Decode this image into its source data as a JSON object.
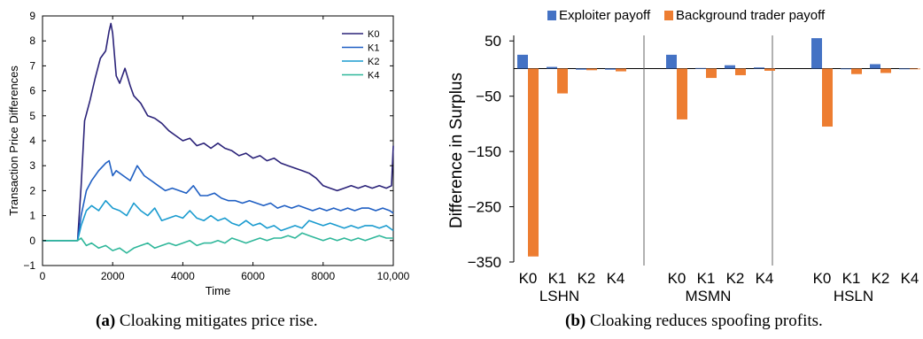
{
  "chart_data": [
    {
      "type": "line",
      "xlabel": "Time",
      "ylabel": "Transaction Price Differences",
      "xlim": [
        0,
        10000
      ],
      "ylim": [
        -1,
        9
      ],
      "xticks": [
        "0",
        "2000",
        "4000",
        "6000",
        "8000",
        "10,000"
      ],
      "yticks": [
        "−1",
        "0",
        "1",
        "2",
        "3",
        "4",
        "5",
        "6",
        "7",
        "8",
        "9"
      ],
      "legend_position": "top-right",
      "series": [
        {
          "name": "K0",
          "color": "#2b2379",
          "x": [
            0,
            1000,
            1100,
            1200,
            1350,
            1500,
            1650,
            1800,
            1900,
            1950,
            2000,
            2100,
            2200,
            2350,
            2500,
            2600,
            2800,
            3000,
            3200,
            3400,
            3600,
            3800,
            4000,
            4200,
            4400,
            4600,
            4800,
            5000,
            5200,
            5400,
            5600,
            5800,
            6000,
            6200,
            6400,
            6600,
            6800,
            7000,
            7200,
            7400,
            7600,
            7800,
            8000,
            8200,
            8400,
            8600,
            8800,
            9000,
            9200,
            9400,
            9600,
            9800,
            9950,
            10000
          ],
          "y": [
            0,
            0,
            2.2,
            4.8,
            5.6,
            6.5,
            7.3,
            7.6,
            8.4,
            8.7,
            8.3,
            6.6,
            6.3,
            6.9,
            6.2,
            5.8,
            5.5,
            5.0,
            4.9,
            4.7,
            4.4,
            4.2,
            4.0,
            4.1,
            3.8,
            3.9,
            3.7,
            3.9,
            3.7,
            3.6,
            3.4,
            3.5,
            3.3,
            3.4,
            3.2,
            3.3,
            3.1,
            3.0,
            2.9,
            2.8,
            2.7,
            2.5,
            2.2,
            2.1,
            2.0,
            2.1,
            2.2,
            2.1,
            2.2,
            2.1,
            2.2,
            2.1,
            2.2,
            3.8
          ]
        },
        {
          "name": "K1",
          "color": "#1f5fc3",
          "x": [
            0,
            1000,
            1100,
            1250,
            1400,
            1600,
            1800,
            1900,
            2000,
            2100,
            2300,
            2500,
            2700,
            2900,
            3100,
            3300,
            3500,
            3700,
            3900,
            4100,
            4300,
            4500,
            4700,
            4900,
            5100,
            5300,
            5500,
            5700,
            5900,
            6100,
            6300,
            6500,
            6700,
            6900,
            7100,
            7300,
            7500,
            7700,
            7900,
            8100,
            8300,
            8500,
            8700,
            8900,
            9100,
            9300,
            9500,
            9700,
            9900,
            10000
          ],
          "y": [
            0,
            0,
            1.0,
            2.0,
            2.4,
            2.8,
            3.1,
            3.2,
            2.6,
            2.8,
            2.6,
            2.4,
            3.0,
            2.6,
            2.4,
            2.2,
            2.0,
            2.1,
            2.0,
            1.9,
            2.2,
            1.8,
            1.8,
            1.9,
            1.7,
            1.6,
            1.6,
            1.5,
            1.6,
            1.5,
            1.4,
            1.5,
            1.3,
            1.4,
            1.3,
            1.4,
            1.3,
            1.2,
            1.3,
            1.2,
            1.3,
            1.2,
            1.3,
            1.2,
            1.3,
            1.3,
            1.2,
            1.3,
            1.2,
            1.1
          ]
        },
        {
          "name": "K2",
          "color": "#1a9bcf",
          "x": [
            0,
            1000,
            1100,
            1250,
            1400,
            1600,
            1800,
            2000,
            2200,
            2400,
            2600,
            2800,
            3000,
            3200,
            3400,
            3600,
            3800,
            4000,
            4200,
            4400,
            4600,
            4800,
            5000,
            5200,
            5400,
            5600,
            5800,
            6000,
            6200,
            6400,
            6600,
            6800,
            7000,
            7200,
            7400,
            7600,
            7800,
            8000,
            8200,
            8400,
            8600,
            8800,
            9000,
            9200,
            9400,
            9600,
            9800,
            10000
          ],
          "y": [
            0,
            0,
            0.6,
            1.2,
            1.4,
            1.2,
            1.6,
            1.3,
            1.2,
            1.0,
            1.5,
            1.2,
            1.0,
            1.3,
            0.8,
            0.9,
            1.0,
            0.9,
            1.2,
            0.9,
            0.8,
            1.0,
            0.8,
            0.9,
            0.7,
            0.6,
            0.8,
            0.6,
            0.7,
            0.5,
            0.6,
            0.4,
            0.5,
            0.6,
            0.5,
            0.8,
            0.7,
            0.6,
            0.7,
            0.6,
            0.5,
            0.6,
            0.5,
            0.6,
            0.6,
            0.5,
            0.6,
            0.4
          ]
        },
        {
          "name": "K4",
          "color": "#2fb79a",
          "x": [
            0,
            1000,
            1100,
            1250,
            1400,
            1600,
            1800,
            2000,
            2200,
            2400,
            2600,
            2800,
            3000,
            3200,
            3400,
            3600,
            3800,
            4000,
            4200,
            4400,
            4600,
            4800,
            5000,
            5200,
            5400,
            5600,
            5800,
            6000,
            6200,
            6400,
            6600,
            6800,
            7000,
            7200,
            7400,
            7600,
            7800,
            8000,
            8200,
            8400,
            8600,
            8800,
            9000,
            9200,
            9400,
            9600,
            9800,
            10000
          ],
          "y": [
            0,
            0,
            0.1,
            -0.2,
            -0.1,
            -0.3,
            -0.2,
            -0.4,
            -0.3,
            -0.5,
            -0.3,
            -0.2,
            -0.1,
            -0.3,
            -0.2,
            -0.1,
            -0.2,
            -0.1,
            0.0,
            -0.2,
            -0.1,
            -0.1,
            0.0,
            -0.1,
            0.1,
            0.0,
            -0.1,
            0.0,
            0.1,
            0.0,
            0.1,
            0.1,
            0.2,
            0.1,
            0.3,
            0.2,
            0.1,
            0.0,
            0.1,
            0.0,
            0.1,
            0.0,
            0.1,
            0.0,
            0.1,
            0.2,
            0.1,
            0.1
          ]
        }
      ]
    },
    {
      "type": "bar",
      "ylabel": "Difference in Surplus",
      "ylim": [
        -350,
        60
      ],
      "yticks": [
        "50",
        "−50",
        "−150",
        "−250",
        "−350"
      ],
      "legend_position": "top",
      "groups": [
        {
          "name": "LSHN",
          "categories": [
            "K0",
            "K1",
            "K2",
            "K4"
          ],
          "exploiter": [
            25,
            3,
            -2,
            -2
          ],
          "background": [
            -340,
            -45,
            -3,
            -5
          ]
        },
        {
          "name": "MSMN",
          "categories": [
            "K0",
            "K1",
            "K2",
            "K4"
          ],
          "exploiter": [
            25,
            1,
            6,
            2
          ],
          "background": [
            -92,
            -17,
            -12,
            -4
          ]
        },
        {
          "name": "HSLN",
          "categories": [
            "K0",
            "K1",
            "K2",
            "K4"
          ],
          "exploiter": [
            55,
            0,
            8,
            0
          ],
          "background": [
            -105,
            -10,
            -8,
            0
          ]
        }
      ],
      "series": [
        {
          "name": "Exploiter payoff",
          "color": "#4472c4"
        },
        {
          "name": "Background trader payoff",
          "color": "#ed7d31"
        }
      ]
    }
  ],
  "captions": {
    "a_label": "(a)",
    "a_text": " Cloaking mitigates price rise.",
    "b_label": "(b)",
    "b_text": " Cloaking reduces spoofing profits."
  }
}
